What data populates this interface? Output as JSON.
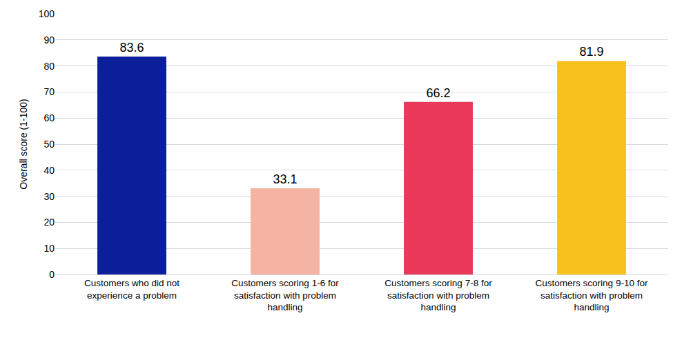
{
  "chart_data": {
    "type": "bar",
    "y_label": "Overall score (1-100)",
    "categories": [
      "Customers who did not experience a problem",
      "Customers scoring 1-6 for satisfaction with problem handling",
      "Customers scoring 7-8 for satisfaction with problem handling",
      "Customers scoring 9-10 for satisfaction with problem handling"
    ],
    "values": [
      83.6,
      33.1,
      66.2,
      81.9
    ],
    "colors": [
      "#0c1f9a",
      "#f4b3a3",
      "#e8395a",
      "#f8c11c"
    ],
    "ylim": [
      0,
      100
    ],
    "yticks": [
      0,
      10,
      20,
      30,
      40,
      50,
      60,
      70,
      80,
      90,
      100
    ],
    "grid": true,
    "data_labels": true
  }
}
